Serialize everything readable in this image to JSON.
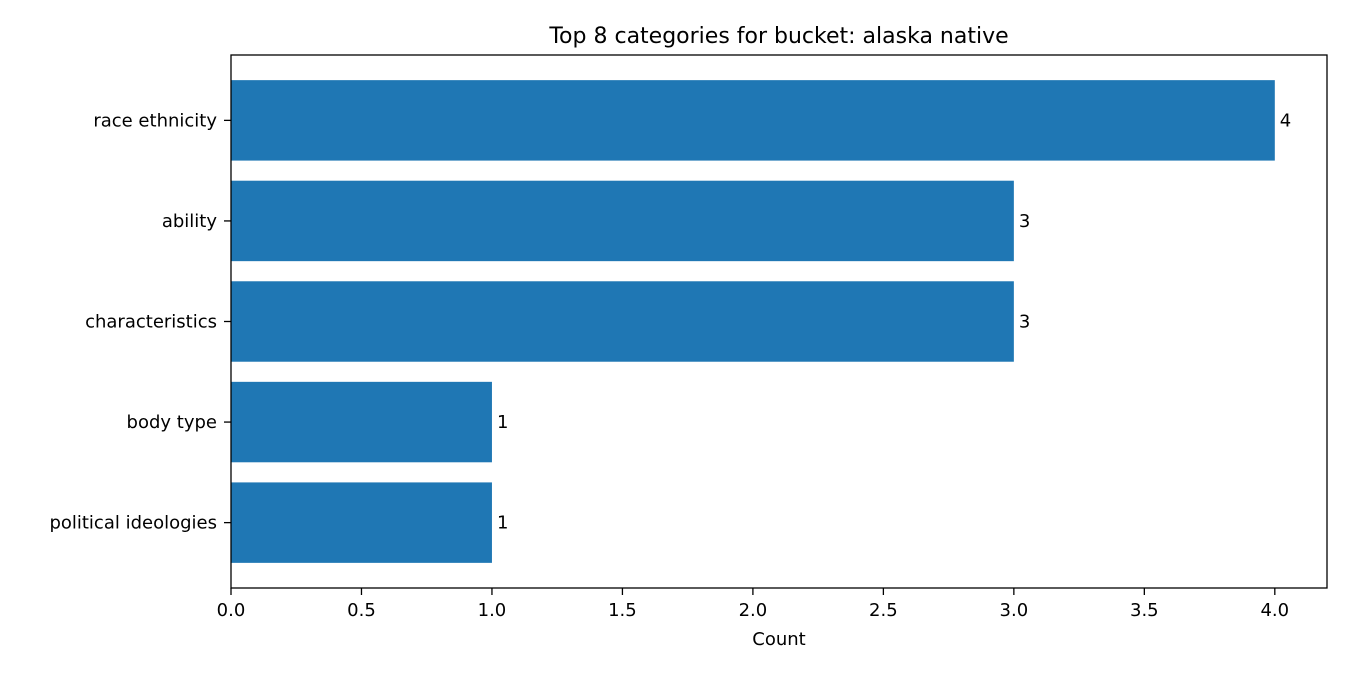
{
  "chart_data": {
    "type": "bar",
    "orientation": "horizontal",
    "title": "Top 8 categories for bucket: alaska native",
    "xlabel": "Count",
    "ylabel": "",
    "categories": [
      "race ethnicity",
      "ability",
      "characteristics",
      "body type",
      "political ideologies"
    ],
    "values": [
      4,
      3,
      3,
      1,
      1
    ],
    "data_labels": [
      "4",
      "3",
      "3",
      "1",
      "1"
    ],
    "xlim": [
      0,
      4.2
    ],
    "xticks": [
      0,
      0.5,
      1,
      1.5,
      2,
      2.5,
      3,
      3.5,
      4
    ],
    "xtick_labels": [
      "0.0",
      "0.5",
      "1.0",
      "1.5",
      "2.0",
      "2.5",
      "3.0",
      "3.5",
      "4.0"
    ],
    "grid": false,
    "bar_color": "#1f77b4"
  }
}
